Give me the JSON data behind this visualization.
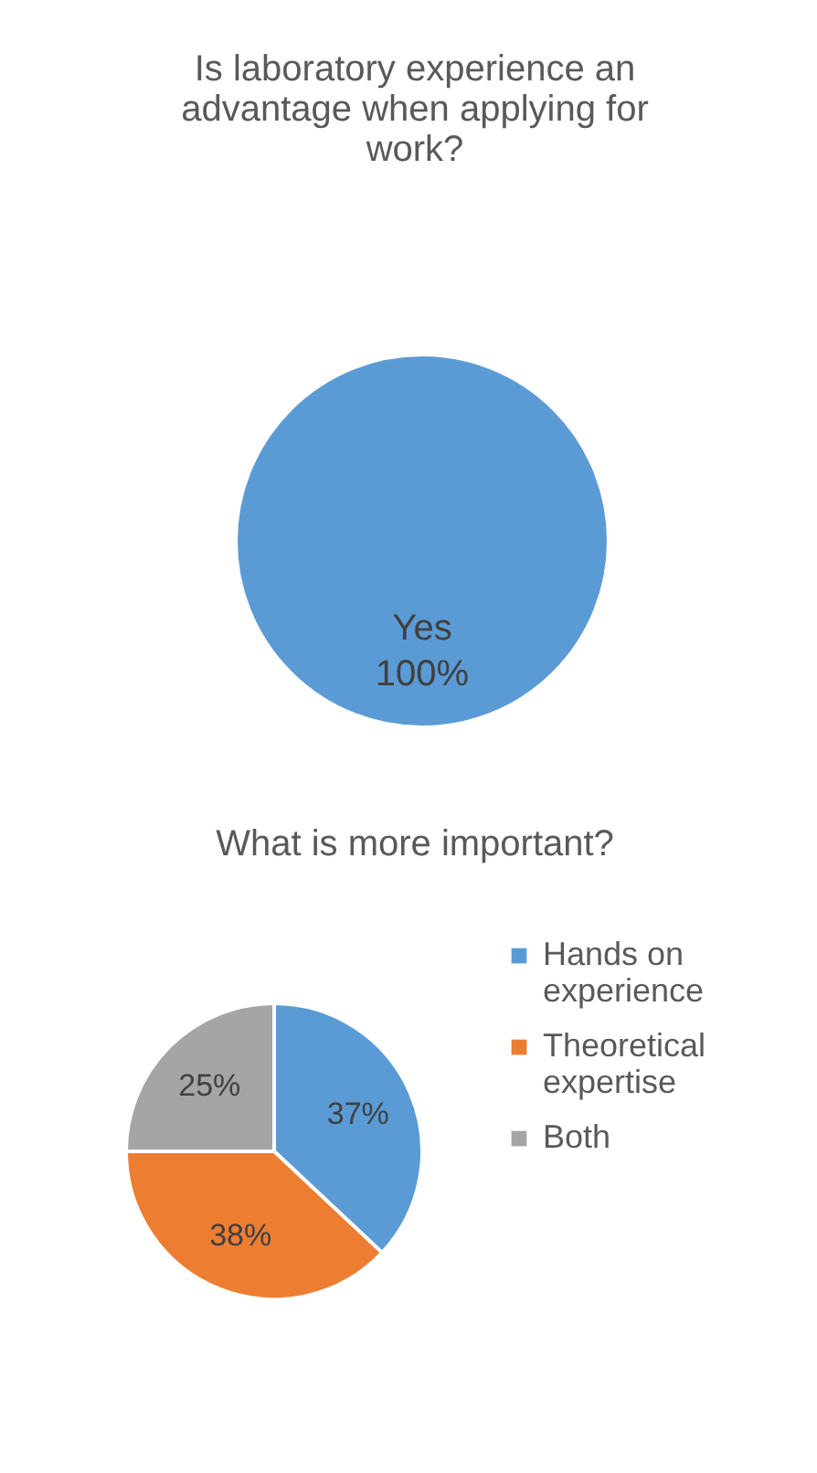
{
  "chart_data": [
    {
      "type": "pie",
      "title": "Is laboratory experience an advantage when applying for work?",
      "categories": [
        "Yes"
      ],
      "values": [
        100
      ],
      "colors": [
        "#5b9bd5"
      ],
      "value_labels": [
        "100%"
      ],
      "legend": false
    },
    {
      "type": "pie",
      "title": "What is more important?",
      "categories": [
        "Hands on experience",
        "Theoretical expertise",
        "Both"
      ],
      "values": [
        37,
        38,
        25
      ],
      "colors": [
        "#5b9bd5",
        "#ed7d31",
        "#a5a5a5"
      ],
      "value_labels": [
        "37%",
        "38%",
        "25%"
      ],
      "legend": "right"
    }
  ]
}
